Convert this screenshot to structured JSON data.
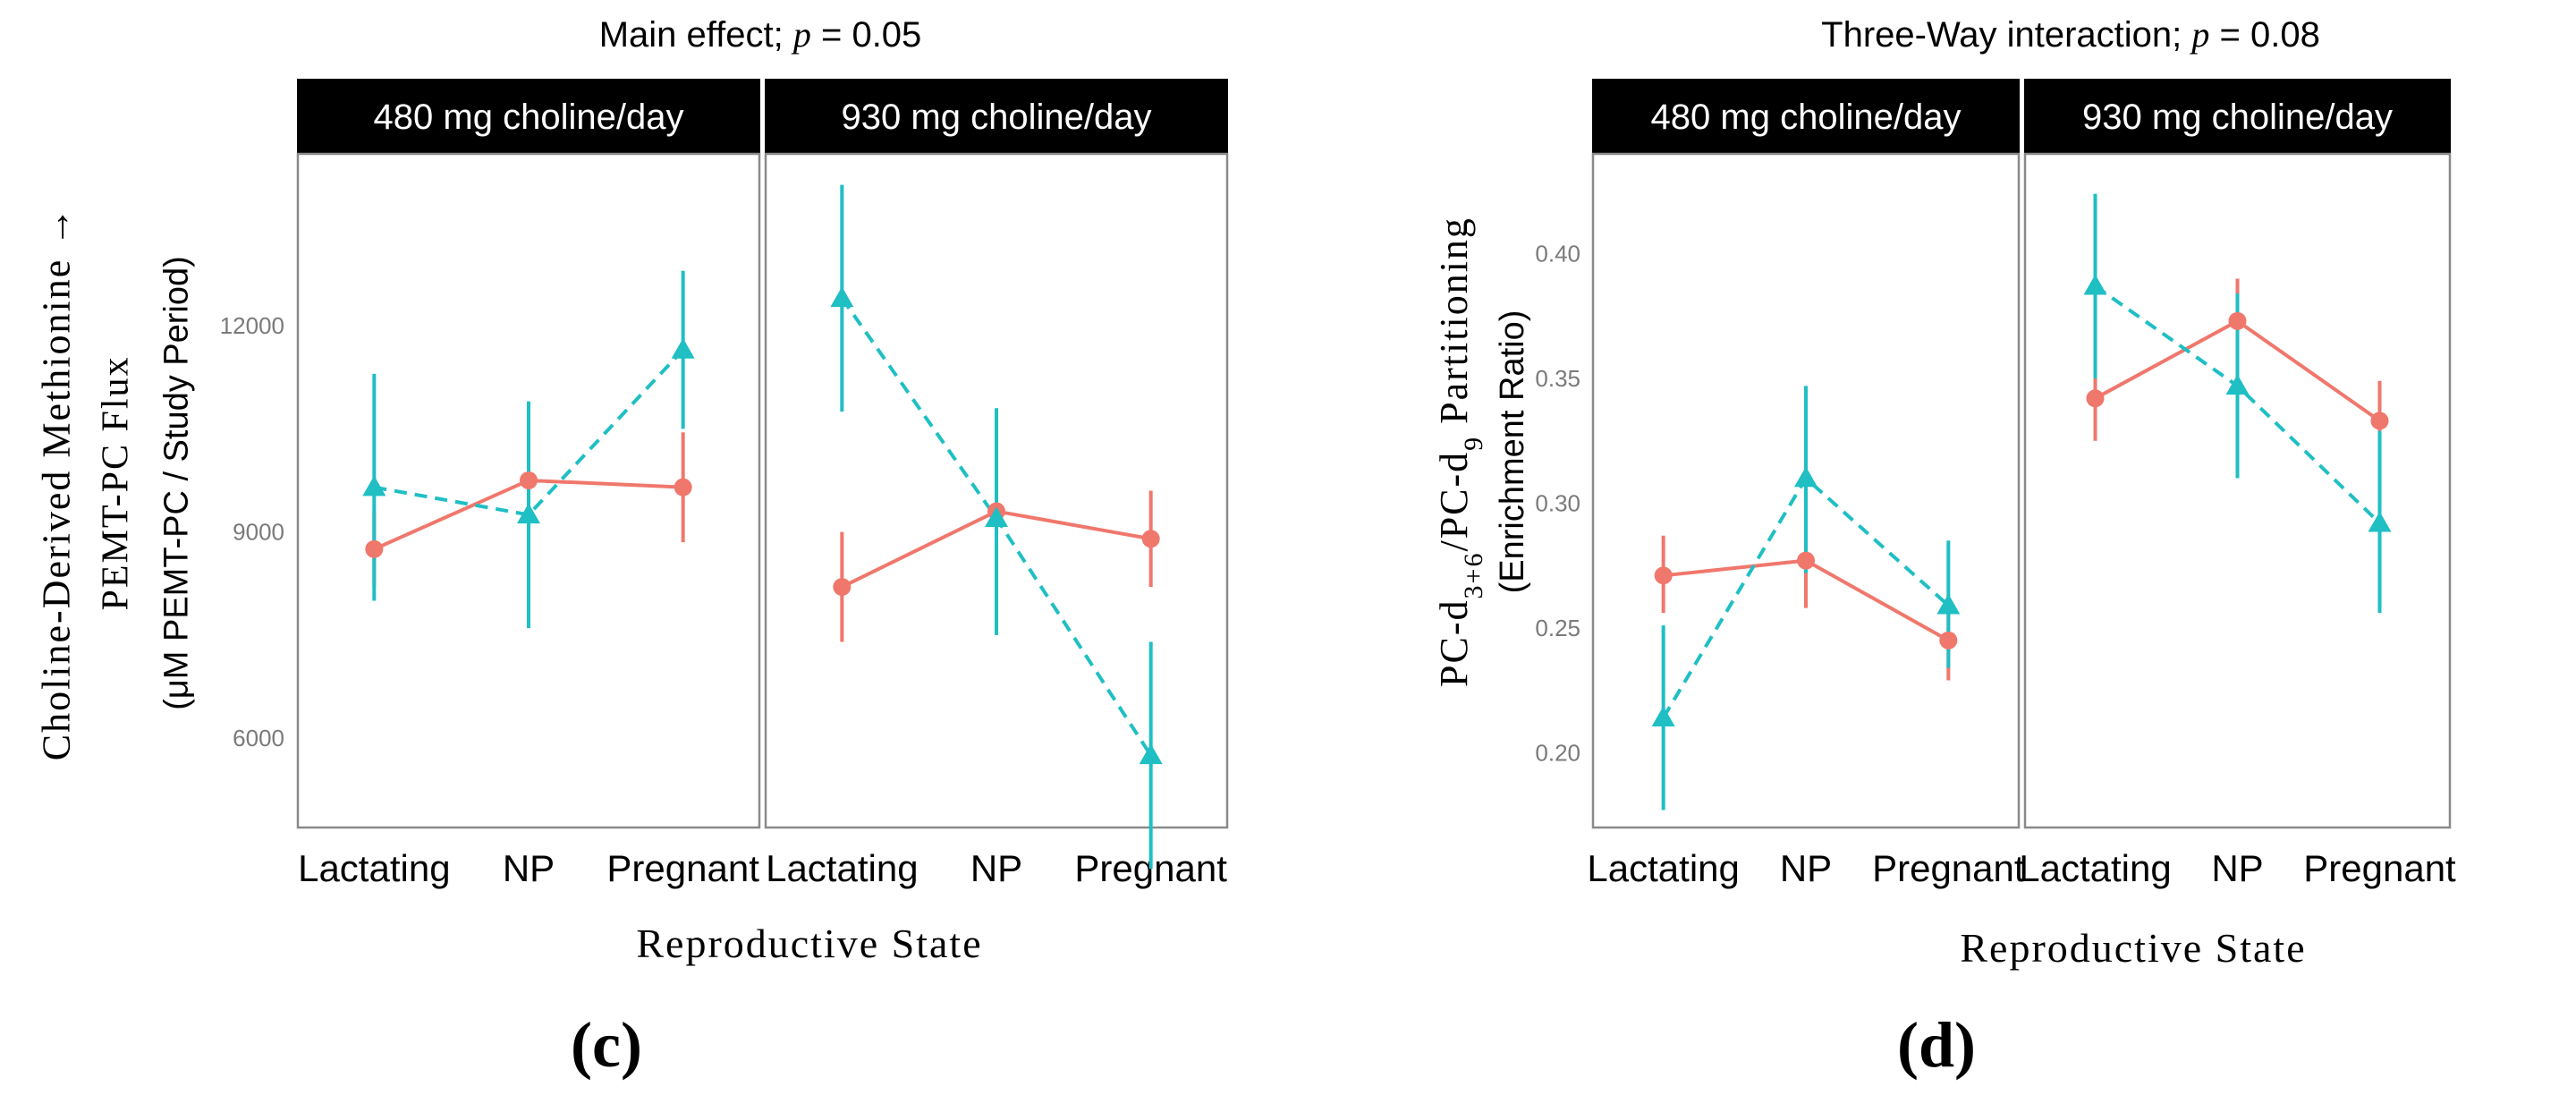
{
  "colors": {
    "series_circle": "#f0776c",
    "series_triangle": "#1fbfc4",
    "strip_bg": "#000000",
    "strip_text": "#ffffff",
    "panel_border": "#8a8a8a",
    "tick_label": "#7a7a7a",
    "text": "#000000"
  },
  "chart_data": [
    {
      "type": "line",
      "title_prefix": "Main effect; ",
      "title_p": "p",
      "title_suffix": " = 0.05",
      "panel_letter": "(c)",
      "ylabel_line1": "Choline-Derived Methionine →",
      "ylabel_line2": "PEMT-PC Flux",
      "ylabel_line3": "(μM PEMT-PC / Study Period)",
      "xlabel": "Reproductive State",
      "ylim": [
        4700,
        14500
      ],
      "yticks": [
        6000,
        9000,
        12000
      ],
      "ytick_labels": [
        "6000",
        "9000",
        "12000"
      ],
      "facets": [
        {
          "strip": "480 mg choline/day",
          "categories": [
            "Lactating",
            "NP",
            "Pregnant"
          ],
          "series": [
            {
              "name": "circle (solid)",
              "marker": "circle",
              "values": [
                8750,
                9750,
                9650
              ],
              "err_low": [
                8200,
                9450,
                8850
              ],
              "err_high": [
                9300,
                10050,
                10450
              ]
            },
            {
              "name": "triangle (dashed)",
              "marker": "triangle",
              "values": [
                9650,
                9250,
                11650
              ],
              "err_low": [
                8000,
                7600,
                10500
              ],
              "err_high": [
                11300,
                10900,
                12800
              ]
            }
          ]
        },
        {
          "strip": "930 mg choline/day",
          "categories": [
            "Lactating",
            "NP",
            "Pregnant"
          ],
          "series": [
            {
              "name": "circle (solid)",
              "marker": "circle",
              "values": [
                8200,
                9300,
                8900
              ],
              "err_low": [
                7400,
                8900,
                8200
              ],
              "err_high": [
                9000,
                9700,
                9600
              ]
            },
            {
              "name": "triangle (dashed)",
              "marker": "triangle",
              "values": [
                12400,
                9200,
                5750
              ],
              "err_low": [
                10750,
                7500,
                4100
              ],
              "err_high": [
                14050,
                10800,
                7400
              ]
            }
          ]
        }
      ]
    },
    {
      "type": "line",
      "title_prefix": "Three-Way interaction; ",
      "title_p": "p",
      "title_suffix": " = 0.08",
      "panel_letter": "(d)",
      "ylabel_main": "PC-d",
      "ylabel_sub1": "3+6",
      "ylabel_mid": "/PC-d",
      "ylabel_sub2": "9",
      "ylabel_end": " Partitioning",
      "ylabel_line2": "(Enrichment Ratio)",
      "xlabel": "Reproductive State",
      "ylim": [
        0.17,
        0.44
      ],
      "yticks": [
        0.2,
        0.25,
        0.3,
        0.35,
        0.4
      ],
      "ytick_labels": [
        "0.20",
        "0.25",
        "0.30",
        "0.35",
        "0.40"
      ],
      "facets": [
        {
          "strip": "480 mg choline/day",
          "categories": [
            "Lactating",
            "NP",
            "Pregnant"
          ],
          "series": [
            {
              "name": "circle (solid)",
              "marker": "circle",
              "values": [
                0.271,
                0.277,
                0.245
              ],
              "err_low": [
                0.256,
                0.258,
                0.229
              ],
              "err_high": [
                0.287,
                0.296,
                0.262
              ]
            },
            {
              "name": "triangle (dashed)",
              "marker": "triangle",
              "values": [
                0.214,
                0.31,
                0.259
              ],
              "err_low": [
                0.177,
                0.272,
                0.234
              ],
              "err_high": [
                0.251,
                0.347,
                0.285
              ]
            }
          ]
        },
        {
          "strip": "930 mg choline/day",
          "categories": [
            "Lactating",
            "NP",
            "Pregnant"
          ],
          "series": [
            {
              "name": "circle (solid)",
              "marker": "circle",
              "values": [
                0.342,
                0.373,
                0.333
              ],
              "err_low": [
                0.325,
                0.356,
                0.317
              ],
              "err_high": [
                0.358,
                0.39,
                0.349
              ]
            },
            {
              "name": "triangle (dashed)",
              "marker": "triangle",
              "values": [
                0.387,
                0.347,
                0.292
              ],
              "err_low": [
                0.35,
                0.31,
                0.256
              ],
              "err_high": [
                0.424,
                0.384,
                0.329
              ]
            }
          ]
        }
      ]
    }
  ]
}
